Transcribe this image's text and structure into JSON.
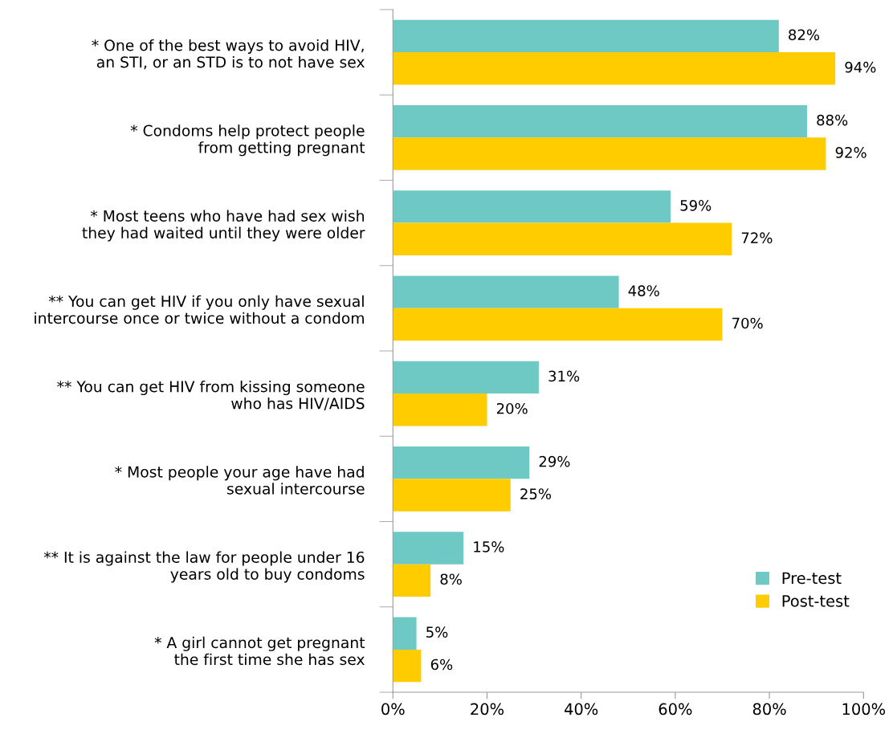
{
  "chart_data": {
    "type": "bar",
    "orientation": "horizontal",
    "categories": [
      "* One of the best ways to avoid HIV,\nan STI, or an STD is to not have sex",
      "* Condoms help protect people\nfrom getting pregnant",
      "* Most teens who have had sex wish\nthey had waited until they were older",
      "** You can get HIV if you only have sexual\nintercourse once or twice without a condom",
      "** You can get HIV from kissing someone\nwho has HIV/AIDS",
      "* Most people your age have had\nsexual intercourse",
      "** It is against the law for people under 16\nyears old to buy condoms",
      "* A girl cannot get pregnant\nthe first time she has sex"
    ],
    "series": [
      {
        "name": "Pre-test",
        "color": "#6ec9c4",
        "values": [
          82,
          88,
          59,
          48,
          31,
          29,
          15,
          5
        ],
        "value_labels": [
          "82%",
          "88%",
          "59%",
          "48%",
          "31%",
          "29%",
          "15%",
          "5%"
        ]
      },
      {
        "name": "Post-test",
        "color": "#ffcc00",
        "values": [
          94,
          92,
          72,
          70,
          20,
          25,
          8,
          6
        ],
        "value_labels": [
          "94%",
          "92%",
          "72%",
          "70%",
          "20%",
          "25%",
          "8%",
          "6%"
        ]
      }
    ],
    "xlim": [
      0,
      100
    ],
    "xticks": [
      {
        "value": 0,
        "label": "0%"
      },
      {
        "value": 20,
        "label": "20%"
      },
      {
        "value": 40,
        "label": "40%"
      },
      {
        "value": 60,
        "label": "60%"
      },
      {
        "value": 80,
        "label": "80%"
      },
      {
        "value": 100,
        "label": "100%"
      }
    ],
    "grid": false,
    "legend": "bottom right"
  }
}
